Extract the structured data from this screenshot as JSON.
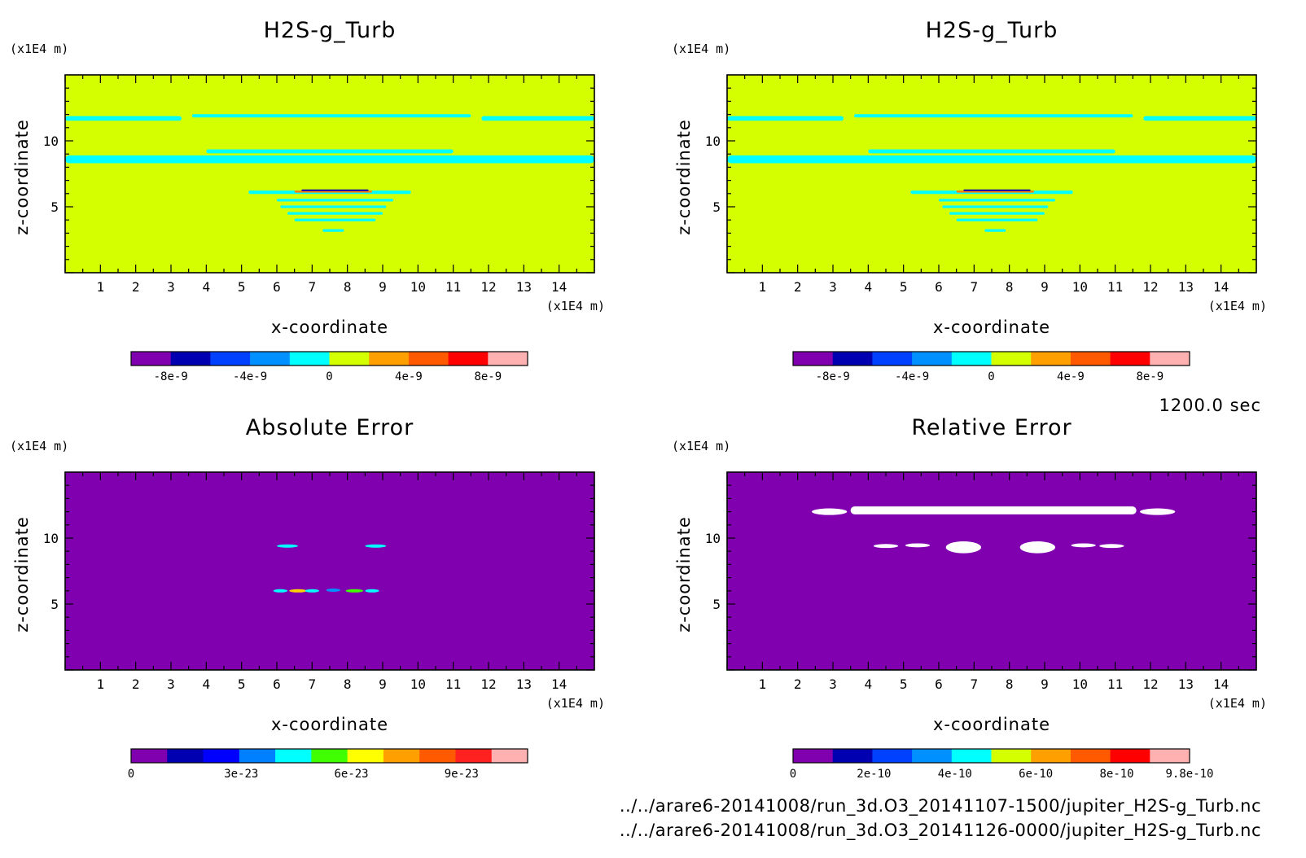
{
  "chart_data": [
    {
      "type": "heatmap",
      "title": "H2S-g_Turb",
      "xlabel": "x-coordinate",
      "ylabel": "z-coordinate",
      "x_unit": "(x1E4 m)",
      "y_unit": "(x1E4 m)",
      "xlim": [
        0,
        15
      ],
      "ylim": [
        0,
        15
      ],
      "xticks": [
        1,
        2,
        3,
        4,
        5,
        6,
        7,
        8,
        9,
        10,
        11,
        12,
        13,
        14
      ],
      "yticks": [
        5,
        10
      ],
      "background": "#d4ff00",
      "features": [
        {
          "kind": "band",
          "x": [
            0,
            3.3
          ],
          "z": 11.7,
          "thick": 0.35,
          "color": "#00ffff"
        },
        {
          "kind": "band",
          "x": [
            3.6,
            11.5
          ],
          "z": 11.9,
          "thick": 0.25,
          "color": "#00ffff"
        },
        {
          "kind": "band",
          "x": [
            11.8,
            15
          ],
          "z": 11.7,
          "thick": 0.35,
          "color": "#00ffff"
        },
        {
          "kind": "band",
          "x": [
            0,
            15
          ],
          "z": 8.6,
          "thick": 0.6,
          "color": "#00ffff"
        },
        {
          "kind": "band",
          "x": [
            4,
            11
          ],
          "z": 9.2,
          "thick": 0.3,
          "color": "#00ffff"
        },
        {
          "kind": "band",
          "x": [
            5.2,
            9.8
          ],
          "z": 6.1,
          "thick": 0.25,
          "color": "#00ffff"
        },
        {
          "kind": "band",
          "x": [
            6.5,
            8.7
          ],
          "z": 6.15,
          "thick": 0.15,
          "color": "#ff8000"
        },
        {
          "kind": "band",
          "x": [
            6.7,
            8.6
          ],
          "z": 6.25,
          "thick": 0.1,
          "color": "#0000b0"
        },
        {
          "kind": "band",
          "x": [
            6,
            9.3
          ],
          "z": 5.5,
          "thick": 0.2,
          "color": "#00ffff"
        },
        {
          "kind": "band",
          "x": [
            6.1,
            9.1
          ],
          "z": 5.0,
          "thick": 0.2,
          "color": "#00ffff"
        },
        {
          "kind": "band",
          "x": [
            6.3,
            9
          ],
          "z": 4.5,
          "thick": 0.2,
          "color": "#00ffff"
        },
        {
          "kind": "band",
          "x": [
            6.5,
            8.8
          ],
          "z": 4.0,
          "thick": 0.2,
          "color": "#00ffff"
        },
        {
          "kind": "band",
          "x": [
            7.3,
            7.9
          ],
          "z": 3.2,
          "thick": 0.2,
          "color": "#00ffff"
        }
      ],
      "colorbar": {
        "colors": [
          "#8000b0",
          "#0000b0",
          "#0040ff",
          "#0090ff",
          "#00ffff",
          "#d4ff00",
          "#ffa000",
          "#ff5a00",
          "#ff0000",
          "#ffb0b0"
        ],
        "tick_labels": [
          "-8e-9",
          "-4e-9",
          "0",
          "4e-9",
          "8e-9"
        ],
        "tick_values": [
          -8e-09,
          -4e-09,
          0,
          4e-09,
          8e-09
        ],
        "range": [
          -1e-08,
          1e-08
        ]
      }
    },
    {
      "type": "heatmap",
      "title": "H2S-g_Turb",
      "xlabel": "x-coordinate",
      "ylabel": "z-coordinate",
      "x_unit": "(x1E4 m)",
      "y_unit": "(x1E4 m)",
      "xlim": [
        0,
        15
      ],
      "ylim": [
        0,
        15
      ],
      "xticks": [
        1,
        2,
        3,
        4,
        5,
        6,
        7,
        8,
        9,
        10,
        11,
        12,
        13,
        14
      ],
      "yticks": [
        5,
        10
      ],
      "background": "#d4ff00",
      "features": [
        {
          "kind": "band",
          "x": [
            0,
            3.3
          ],
          "z": 11.7,
          "thick": 0.35,
          "color": "#00ffff"
        },
        {
          "kind": "band",
          "x": [
            3.6,
            11.5
          ],
          "z": 11.9,
          "thick": 0.25,
          "color": "#00ffff"
        },
        {
          "kind": "band",
          "x": [
            11.8,
            15
          ],
          "z": 11.7,
          "thick": 0.35,
          "color": "#00ffff"
        },
        {
          "kind": "band",
          "x": [
            0,
            15
          ],
          "z": 8.6,
          "thick": 0.6,
          "color": "#00ffff"
        },
        {
          "kind": "band",
          "x": [
            4,
            11
          ],
          "z": 9.2,
          "thick": 0.3,
          "color": "#00ffff"
        },
        {
          "kind": "band",
          "x": [
            5.2,
            9.8
          ],
          "z": 6.1,
          "thick": 0.25,
          "color": "#00ffff"
        },
        {
          "kind": "band",
          "x": [
            6.5,
            8.7
          ],
          "z": 6.15,
          "thick": 0.15,
          "color": "#ff8000"
        },
        {
          "kind": "band",
          "x": [
            6.7,
            8.6
          ],
          "z": 6.25,
          "thick": 0.1,
          "color": "#0000b0"
        },
        {
          "kind": "band",
          "x": [
            6,
            9.3
          ],
          "z": 5.5,
          "thick": 0.2,
          "color": "#00ffff"
        },
        {
          "kind": "band",
          "x": [
            6.1,
            9.1
          ],
          "z": 5.0,
          "thick": 0.2,
          "color": "#00ffff"
        },
        {
          "kind": "band",
          "x": [
            6.3,
            9
          ],
          "z": 4.5,
          "thick": 0.2,
          "color": "#00ffff"
        },
        {
          "kind": "band",
          "x": [
            6.5,
            8.8
          ],
          "z": 4.0,
          "thick": 0.2,
          "color": "#00ffff"
        },
        {
          "kind": "band",
          "x": [
            7.3,
            7.9
          ],
          "z": 3.2,
          "thick": 0.2,
          "color": "#00ffff"
        }
      ],
      "colorbar": {
        "colors": [
          "#8000b0",
          "#0000b0",
          "#0040ff",
          "#0090ff",
          "#00ffff",
          "#d4ff00",
          "#ffa000",
          "#ff5a00",
          "#ff0000",
          "#ffb0b0"
        ],
        "tick_labels": [
          "-8e-9",
          "-4e-9",
          "0",
          "4e-9",
          "8e-9"
        ],
        "tick_values": [
          -8e-09,
          -4e-09,
          0,
          4e-09,
          8e-09
        ],
        "range": [
          -1e-08,
          1e-08
        ]
      }
    },
    {
      "type": "heatmap",
      "title": "Absolute Error",
      "xlabel": "x-coordinate",
      "ylabel": "z-coordinate",
      "x_unit": "(x1E4 m)",
      "y_unit": "(x1E4 m)",
      "xlim": [
        0,
        15
      ],
      "ylim": [
        0,
        15
      ],
      "xticks": [
        1,
        2,
        3,
        4,
        5,
        6,
        7,
        8,
        9,
        10,
        11,
        12,
        13,
        14
      ],
      "yticks": [
        5,
        10
      ],
      "background": "#8000b0",
      "features": [
        {
          "kind": "blob",
          "x": 6.3,
          "z": 9.4,
          "rx": 0.3,
          "rz": 0.12,
          "color": "#00ffff"
        },
        {
          "kind": "blob",
          "x": 8.8,
          "z": 9.4,
          "rx": 0.3,
          "rz": 0.12,
          "color": "#00ffff"
        },
        {
          "kind": "blob",
          "x": 6.1,
          "z": 6.0,
          "rx": 0.2,
          "rz": 0.1,
          "color": "#00ffff"
        },
        {
          "kind": "blob",
          "x": 6.6,
          "z": 6.0,
          "rx": 0.25,
          "rz": 0.12,
          "color": "#ffd000"
        },
        {
          "kind": "blob",
          "x": 7.0,
          "z": 6.0,
          "rx": 0.2,
          "rz": 0.1,
          "color": "#00ffff"
        },
        {
          "kind": "blob",
          "x": 7.6,
          "z": 6.05,
          "rx": 0.2,
          "rz": 0.08,
          "color": "#0090ff"
        },
        {
          "kind": "blob",
          "x": 8.2,
          "z": 6.0,
          "rx": 0.25,
          "rz": 0.12,
          "color": "#40ff00"
        },
        {
          "kind": "blob",
          "x": 8.7,
          "z": 6.0,
          "rx": 0.2,
          "rz": 0.1,
          "color": "#00ffff"
        }
      ],
      "colorbar": {
        "colors": [
          "#8000b0",
          "#0000b0",
          "#0000ff",
          "#0080ff",
          "#00ffff",
          "#40ff00",
          "#ffff00",
          "#ffa000",
          "#ff5a00",
          "#ff2020",
          "#ffb0b0"
        ],
        "tick_labels": [
          "0",
          "3e-23",
          "6e-23",
          "9e-23"
        ],
        "tick_values": [
          0,
          3e-23,
          6e-23,
          9e-23
        ],
        "range": [
          0,
          1.08e-22
        ]
      }
    },
    {
      "type": "heatmap",
      "title": "Relative Error",
      "xlabel": "x-coordinate",
      "ylabel": "z-coordinate",
      "x_unit": "(x1E4 m)",
      "y_unit": "(x1E4 m)",
      "xlim": [
        0,
        15
      ],
      "ylim": [
        0,
        15
      ],
      "xticks": [
        1,
        2,
        3,
        4,
        5,
        6,
        7,
        8,
        9,
        10,
        11,
        12,
        13,
        14
      ],
      "yticks": [
        5,
        10
      ],
      "background": "#8000b0",
      "features": [
        {
          "kind": "band",
          "x": [
            3.5,
            11.6
          ],
          "z": 12.1,
          "thick": 0.6,
          "color": "#ffffff"
        },
        {
          "kind": "blob",
          "x": 2.9,
          "z": 12.0,
          "rx": 0.5,
          "rz": 0.25,
          "color": "#ffffff"
        },
        {
          "kind": "blob",
          "x": 12.2,
          "z": 12.0,
          "rx": 0.5,
          "rz": 0.25,
          "color": "#ffffff"
        },
        {
          "kind": "blob",
          "x": 6.7,
          "z": 9.3,
          "rx": 0.5,
          "rz": 0.45,
          "color": "#ffffff"
        },
        {
          "kind": "blob",
          "x": 8.8,
          "z": 9.3,
          "rx": 0.5,
          "rz": 0.45,
          "color": "#ffffff"
        },
        {
          "kind": "blob",
          "x": 4.5,
          "z": 9.4,
          "rx": 0.35,
          "rz": 0.15,
          "color": "#ffffff"
        },
        {
          "kind": "blob",
          "x": 5.4,
          "z": 9.45,
          "rx": 0.35,
          "rz": 0.15,
          "color": "#ffffff"
        },
        {
          "kind": "blob",
          "x": 10.1,
          "z": 9.45,
          "rx": 0.35,
          "rz": 0.15,
          "color": "#ffffff"
        },
        {
          "kind": "blob",
          "x": 10.9,
          "z": 9.4,
          "rx": 0.35,
          "rz": 0.15,
          "color": "#ffffff"
        }
      ],
      "colorbar": {
        "colors": [
          "#8000b0",
          "#0000b0",
          "#0040ff",
          "#0090ff",
          "#00ffff",
          "#d4ff00",
          "#ffa000",
          "#ff5a00",
          "#ff0000",
          "#ffb0b0"
        ],
        "tick_labels": [
          "0",
          "2e-10",
          "4e-10",
          "6e-10",
          "8e-10",
          "9.8e-10"
        ],
        "tick_values": [
          0,
          2e-10,
          4e-10,
          6e-10,
          8e-10,
          9.8e-10
        ],
        "range": [
          0,
          9.8e-10
        ]
      }
    }
  ],
  "time_label": "1200.0 sec",
  "file_paths": [
    "../../arare6-20141008/run_3d.O3_20141107-1500/jupiter_H2S-g_Turb.nc",
    "../../arare6-20141008/run_3d.O3_20141126-0000/jupiter_H2S-g_Turb.nc"
  ]
}
